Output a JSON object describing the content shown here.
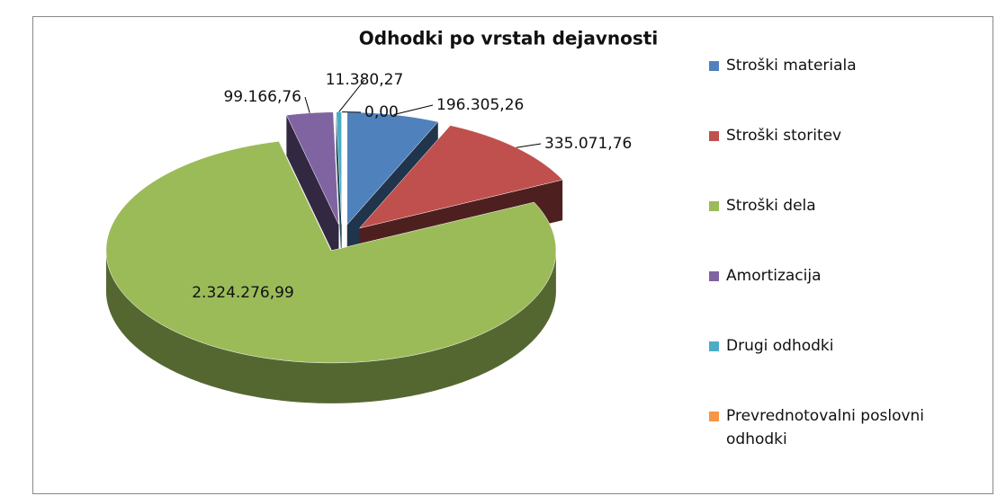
{
  "chart_data": {
    "type": "pie",
    "title": "Odhodki po vrstah dejavnosti",
    "categories": [
      "Stroški materiala",
      "Stroški storitev",
      "Stroški dela",
      "Amortizacija",
      "Drugi odhodki",
      "Prevrednotovalni poslovni odhodki"
    ],
    "values": [
      196305.26,
      335071.76,
      2324276.99,
      99166.76,
      11380.27,
      0
    ],
    "value_labels": [
      "196.305,26",
      "335.071,76",
      "2.324.276,99",
      "99.166,76",
      "11.380,27",
      "0,00"
    ],
    "colors": [
      "#4f81bd",
      "#c0504d",
      "#9bbb59",
      "#8064a2",
      "#4bacc6",
      "#f79646"
    ],
    "legend": "right"
  }
}
